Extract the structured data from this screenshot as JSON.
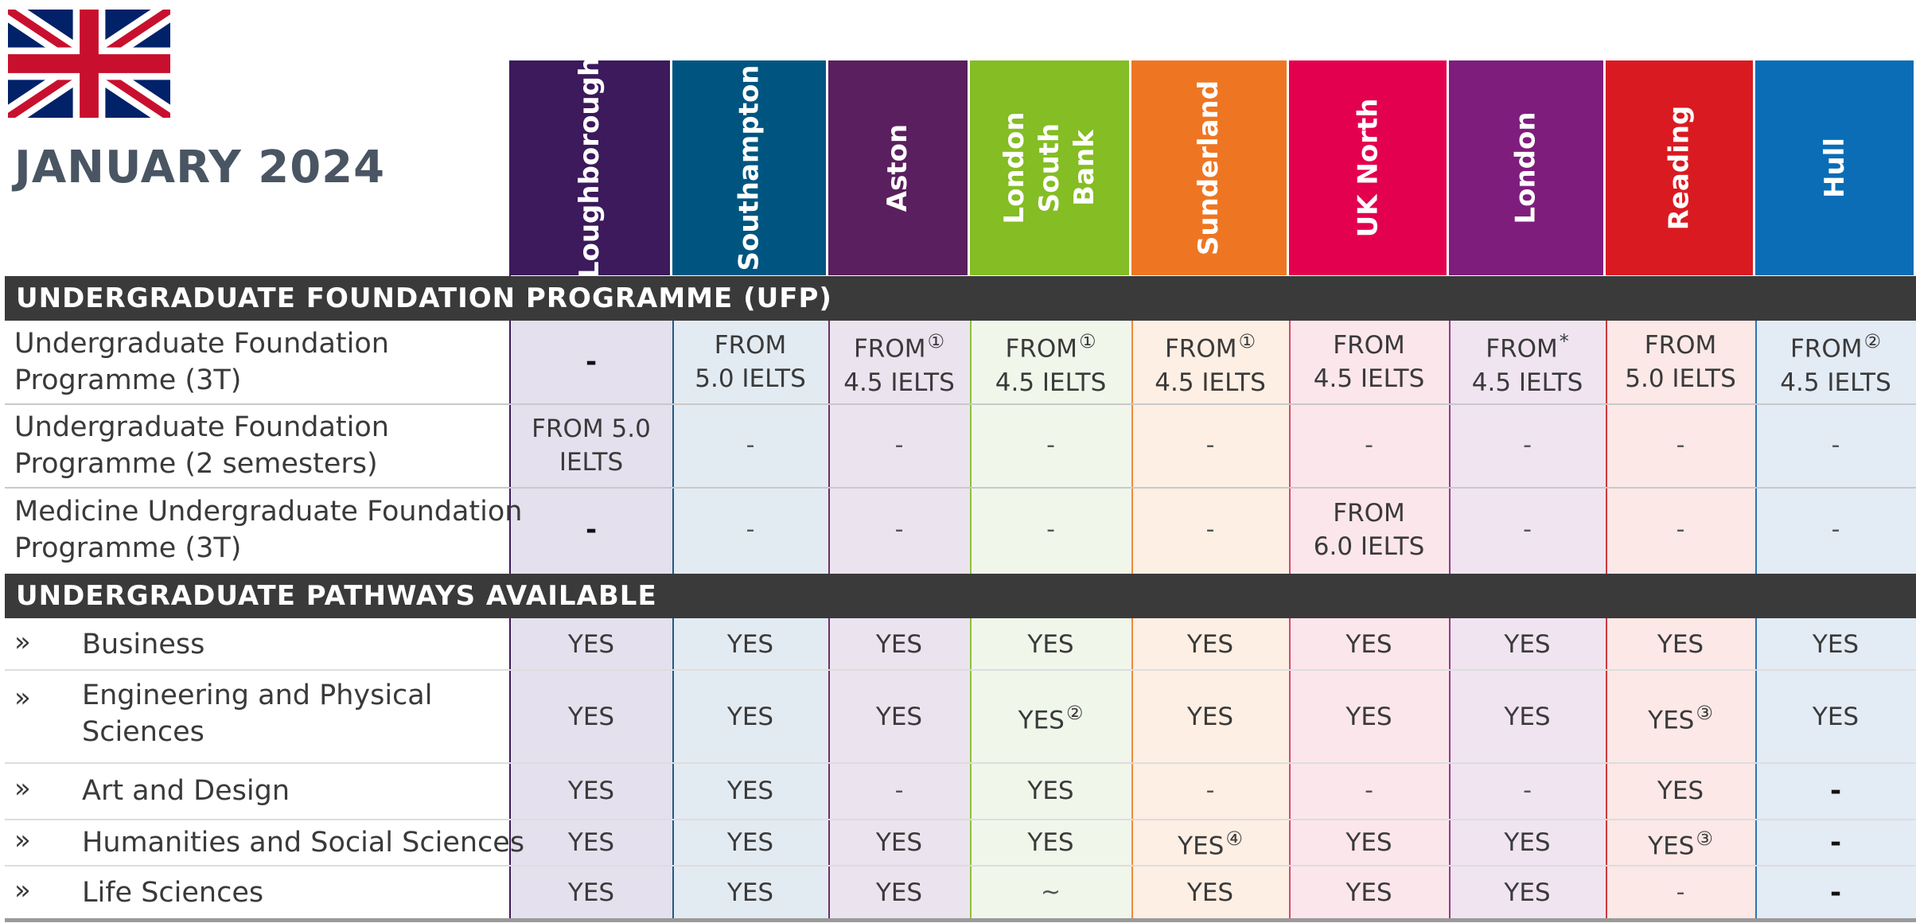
{
  "title": "JANUARY 2024",
  "flag_icon": "uk-flag-icon",
  "columns": [
    {
      "name": "Loughborough",
      "color": "#3c1a5b",
      "tint": "#e4e0ee",
      "line": "#3c1a5b"
    },
    {
      "name": "Southampton",
      "color": "#005580",
      "tint": "#e3ebf2",
      "line": "#1f5b86"
    },
    {
      "name": "Aston",
      "color": "#5a1f5e",
      "tint": "#ebe3ee",
      "line": "#6b2f6e"
    },
    {
      "name": "London South Bank",
      "color": "#84bd24",
      "tint": "#f1f6ea",
      "line": "#8cc23a"
    },
    {
      "name": "Sunderland",
      "color": "#ee7623",
      "tint": "#fdefe4",
      "line": "#ef8a3a"
    },
    {
      "name": "UK North",
      "color": "#e3004f",
      "tint": "#fbe6ec",
      "line": "#d6486f"
    },
    {
      "name": "London",
      "color": "#7f1d7d",
      "tint": "#f0e4f0",
      "line": "#8e3d8c"
    },
    {
      "name": "Reading",
      "color": "#d91a21",
      "tint": "#fbe8e7",
      "line": "#cf3a3f"
    },
    {
      "name": "Hull",
      "color": "#0a6db5",
      "tint": "#e3ebf5",
      "line": "#2f73b6"
    }
  ],
  "sections": {
    "ufp": "UNDERGRADUATE FOUNDATION PROGRAMME (UFP)",
    "pathways": "UNDERGRADUATE PATHWAYS AVAILABLE"
  },
  "ufp_rows": [
    {
      "label_lines": [
        "Undergraduate Foundation",
        "Programme (3T)"
      ],
      "cells": [
        {
          "lines": [
            "-"
          ],
          "style": "dash-bold"
        },
        {
          "lines": [
            "FROM",
            "5.0 IELTS"
          ]
        },
        {
          "lines": [
            "FROM",
            "4.5 IELTS"
          ],
          "sup": "①"
        },
        {
          "lines": [
            "FROM",
            "4.5 IELTS"
          ],
          "sup": "①"
        },
        {
          "lines": [
            "FROM",
            "4.5 IELTS"
          ],
          "sup": "①"
        },
        {
          "lines": [
            "FROM",
            "4.5 IELTS"
          ]
        },
        {
          "lines": [
            "FROM",
            "4.5 IELTS"
          ],
          "sup": "*"
        },
        {
          "lines": [
            "FROM",
            "5.0 IELTS"
          ]
        },
        {
          "lines": [
            "FROM",
            "4.5 IELTS"
          ],
          "sup": "②"
        }
      ]
    },
    {
      "label_lines": [
        "Undergraduate Foundation",
        "Programme (2 semesters)"
      ],
      "cells": [
        {
          "lines": [
            "FROM 5.0",
            "IELTS"
          ]
        },
        {
          "lines": [
            "-"
          ],
          "style": "dash"
        },
        {
          "lines": [
            "-"
          ],
          "style": "dash"
        },
        {
          "lines": [
            "-"
          ],
          "style": "dash"
        },
        {
          "lines": [
            "-"
          ],
          "style": "dash"
        },
        {
          "lines": [
            "-"
          ],
          "style": "dash"
        },
        {
          "lines": [
            "-"
          ],
          "style": "dash"
        },
        {
          "lines": [
            "-"
          ],
          "style": "dash"
        },
        {
          "lines": [
            "-"
          ],
          "style": "dash"
        }
      ]
    },
    {
      "label_lines": [
        "Medicine Undergraduate Foundation",
        "Programme (3T)"
      ],
      "cells": [
        {
          "lines": [
            "-"
          ],
          "style": "dash-bold"
        },
        {
          "lines": [
            "-"
          ],
          "style": "dash"
        },
        {
          "lines": [
            "-"
          ],
          "style": "dash"
        },
        {
          "lines": [
            "-"
          ],
          "style": "dash"
        },
        {
          "lines": [
            "-"
          ],
          "style": "dash"
        },
        {
          "lines": [
            "FROM",
            "6.0 IELTS"
          ]
        },
        {
          "lines": [
            "-"
          ],
          "style": "dash"
        },
        {
          "lines": [
            "-"
          ],
          "style": "dash"
        },
        {
          "lines": [
            "-"
          ],
          "style": "dash"
        }
      ]
    }
  ],
  "pathway_rows": [
    {
      "bullet": "»",
      "label_lines": [
        "Business"
      ],
      "cells": [
        {
          "lines": [
            "YES"
          ]
        },
        {
          "lines": [
            "YES"
          ]
        },
        {
          "lines": [
            "YES"
          ]
        },
        {
          "lines": [
            "YES"
          ]
        },
        {
          "lines": [
            "YES"
          ]
        },
        {
          "lines": [
            "YES"
          ]
        },
        {
          "lines": [
            "YES"
          ]
        },
        {
          "lines": [
            "YES"
          ]
        },
        {
          "lines": [
            "YES"
          ]
        }
      ]
    },
    {
      "bullet": "»",
      "label_lines": [
        "Engineering and Physical",
        "Sciences"
      ],
      "cells": [
        {
          "lines": [
            "YES"
          ]
        },
        {
          "lines": [
            "YES"
          ]
        },
        {
          "lines": [
            "YES"
          ]
        },
        {
          "lines": [
            "YES"
          ],
          "sup": "②"
        },
        {
          "lines": [
            "YES"
          ]
        },
        {
          "lines": [
            "YES"
          ]
        },
        {
          "lines": [
            "YES"
          ]
        },
        {
          "lines": [
            "YES"
          ],
          "sup": "③"
        },
        {
          "lines": [
            "YES"
          ]
        }
      ]
    },
    {
      "bullet": "»",
      "label_lines": [
        "Art and Design"
      ],
      "cells": [
        {
          "lines": [
            "YES"
          ]
        },
        {
          "lines": [
            "YES"
          ]
        },
        {
          "lines": [
            "-"
          ],
          "style": "dash"
        },
        {
          "lines": [
            "YES"
          ]
        },
        {
          "lines": [
            "-"
          ],
          "style": "dash"
        },
        {
          "lines": [
            "-"
          ],
          "style": "dash"
        },
        {
          "lines": [
            "-"
          ],
          "style": "dash"
        },
        {
          "lines": [
            "YES"
          ]
        },
        {
          "lines": [
            "-"
          ],
          "style": "dash-bold"
        }
      ]
    },
    {
      "bullet": "»",
      "label_lines": [
        "Humanities and Social Sciences"
      ],
      "cells": [
        {
          "lines": [
            "YES"
          ]
        },
        {
          "lines": [
            "YES"
          ]
        },
        {
          "lines": [
            "YES"
          ]
        },
        {
          "lines": [
            "YES"
          ]
        },
        {
          "lines": [
            "YES"
          ],
          "sup": "④"
        },
        {
          "lines": [
            "YES"
          ]
        },
        {
          "lines": [
            "YES"
          ]
        },
        {
          "lines": [
            "YES"
          ],
          "sup": "③"
        },
        {
          "lines": [
            "-"
          ],
          "style": "dash-bold"
        }
      ]
    },
    {
      "bullet": "»",
      "label_lines": [
        "Life Sciences"
      ],
      "cells": [
        {
          "lines": [
            "YES"
          ]
        },
        {
          "lines": [
            "YES"
          ]
        },
        {
          "lines": [
            "YES"
          ]
        },
        {
          "lines": [
            "~"
          ],
          "style": "dash"
        },
        {
          "lines": [
            "YES"
          ]
        },
        {
          "lines": [
            "YES"
          ]
        },
        {
          "lines": [
            "YES"
          ]
        },
        {
          "lines": [
            "-"
          ],
          "style": "dash"
        },
        {
          "lines": [
            "-"
          ],
          "style": "dash-bold"
        }
      ]
    }
  ]
}
